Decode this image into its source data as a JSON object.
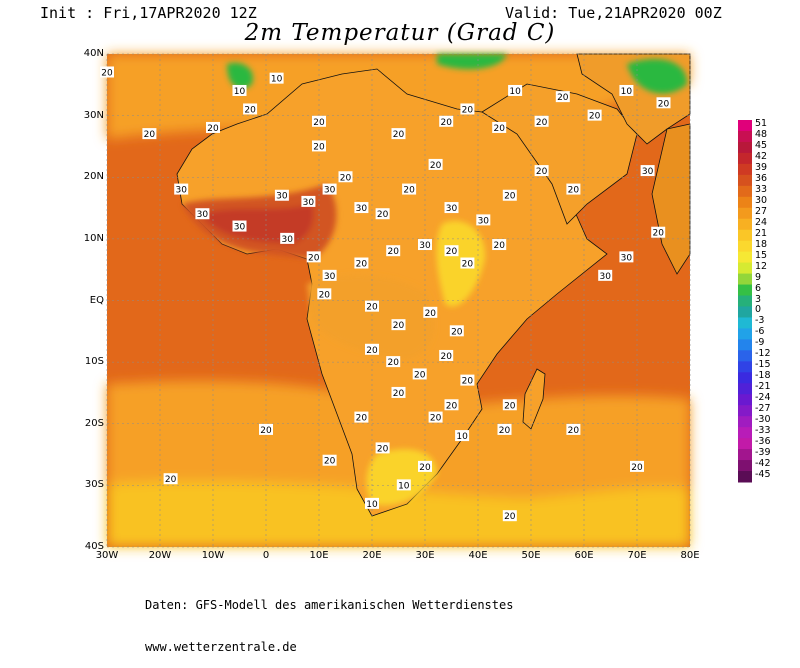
{
  "header": {
    "init": "Init : Fri,17APR2020 12Z",
    "valid": "Valid: Tue,21APR2020 00Z"
  },
  "title": "2m Temperatur (Grad C)",
  "map": {
    "lat_ticks": [
      "40N",
      "30N",
      "20N",
      "10N",
      "EQ",
      "10S",
      "20S",
      "30S",
      "40S"
    ],
    "lon_ticks": [
      "30W",
      "20W",
      "10W",
      "0",
      "10E",
      "20E",
      "30E",
      "40E",
      "50E",
      "60E",
      "70E",
      "80E"
    ],
    "lat_range": [
      -40,
      40
    ],
    "lon_range": [
      -30,
      80
    ],
    "grid": "dashed",
    "colors": {
      "ocean_warm": "#e2681a",
      "ocean_mild": "#f6a028",
      "ocean_cool": "#f9c223",
      "land_warm": "#f7a12a",
      "land_hot": "#d25520",
      "land_very_hot": "#c43b26",
      "mountain_cool": "#fad32c",
      "snow_cold": "#2ab840"
    },
    "labels": [
      {
        "lon": -30,
        "lat": 37,
        "value": "20"
      },
      {
        "lon": -22,
        "lat": 27,
        "value": "20"
      },
      {
        "lon": -10,
        "lat": 28,
        "value": "20"
      },
      {
        "lon": -5,
        "lat": 34,
        "value": "10"
      },
      {
        "lon": 2,
        "lat": 36,
        "value": "10"
      },
      {
        "lon": -3,
        "lat": 31,
        "value": "20"
      },
      {
        "lon": 10,
        "lat": 29,
        "value": "20"
      },
      {
        "lon": 10,
        "lat": 25,
        "value": "20"
      },
      {
        "lon": 25,
        "lat": 27,
        "value": "20"
      },
      {
        "lon": 32,
        "lat": 22,
        "value": "20"
      },
      {
        "lon": 34,
        "lat": 29,
        "value": "20"
      },
      {
        "lon": 38,
        "lat": 31,
        "value": "20"
      },
      {
        "lon": 44,
        "lat": 28,
        "value": "20"
      },
      {
        "lon": 47,
        "lat": 34,
        "value": "10"
      },
      {
        "lon": 52,
        "lat": 29,
        "value": "20"
      },
      {
        "lon": 56,
        "lat": 33,
        "value": "20"
      },
      {
        "lon": 62,
        "lat": 30,
        "value": "20"
      },
      {
        "lon": 68,
        "lat": 34,
        "value": "10"
      },
      {
        "lon": 75,
        "lat": 32,
        "value": "20"
      },
      {
        "lon": -16,
        "lat": 18,
        "value": "30"
      },
      {
        "lon": -12,
        "lat": 14,
        "value": "30"
      },
      {
        "lon": -5,
        "lat": 12,
        "value": "30"
      },
      {
        "lon": 3,
        "lat": 17,
        "value": "30"
      },
      {
        "lon": 8,
        "lat": 16,
        "value": "30"
      },
      {
        "lon": 12,
        "lat": 18,
        "value": "30"
      },
      {
        "lon": 15,
        "lat": 20,
        "value": "20"
      },
      {
        "lon": 18,
        "lat": 15,
        "value": "30"
      },
      {
        "lon": 22,
        "lat": 14,
        "value": "20"
      },
      {
        "lon": 27,
        "lat": 18,
        "value": "20"
      },
      {
        "lon": 35,
        "lat": 15,
        "value": "30"
      },
      {
        "lon": 41,
        "lat": 13,
        "value": "30"
      },
      {
        "lon": 46,
        "lat": 17,
        "value": "20"
      },
      {
        "lon": 52,
        "lat": 21,
        "value": "20"
      },
      {
        "lon": 58,
        "lat": 18,
        "value": "20"
      },
      {
        "lon": 72,
        "lat": 21,
        "value": "30"
      },
      {
        "lon": 74,
        "lat": 11,
        "value": "20"
      },
      {
        "lon": 68,
        "lat": 7,
        "value": "30"
      },
      {
        "lon": 64,
        "lat": 4,
        "value": "30"
      },
      {
        "lon": 4,
        "lat": 10,
        "value": "30"
      },
      {
        "lon": 9,
        "lat": 7,
        "value": "20"
      },
      {
        "lon": 12,
        "lat": 4,
        "value": "30"
      },
      {
        "lon": 18,
        "lat": 6,
        "value": "20"
      },
      {
        "lon": 24,
        "lat": 8,
        "value": "20"
      },
      {
        "lon": 30,
        "lat": 9,
        "value": "30"
      },
      {
        "lon": 35,
        "lat": 8,
        "value": "20"
      },
      {
        "lon": 38,
        "lat": 6,
        "value": "20"
      },
      {
        "lon": 44,
        "lat": 9,
        "value": "20"
      },
      {
        "lon": 11,
        "lat": 1,
        "value": "20"
      },
      {
        "lon": 20,
        "lat": -1,
        "value": "20"
      },
      {
        "lon": 25,
        "lat": -4,
        "value": "20"
      },
      {
        "lon": 31,
        "lat": -2,
        "value": "20"
      },
      {
        "lon": 36,
        "lat": -5,
        "value": "20"
      },
      {
        "lon": 20,
        "lat": -8,
        "value": "20"
      },
      {
        "lon": 24,
        "lat": -10,
        "value": "20"
      },
      {
        "lon": 29,
        "lat": -12,
        "value": "20"
      },
      {
        "lon": 34,
        "lat": -9,
        "value": "20"
      },
      {
        "lon": 38,
        "lat": -13,
        "value": "20"
      },
      {
        "lon": 25,
        "lat": -15,
        "value": "20"
      },
      {
        "lon": 32,
        "lat": -19,
        "value": "20"
      },
      {
        "lon": 35,
        "lat": -17,
        "value": "20"
      },
      {
        "lon": 37,
        "lat": -22,
        "value": "10"
      },
      {
        "lon": 22,
        "lat": -24,
        "value": "20"
      },
      {
        "lon": 18,
        "lat": -19,
        "value": "20"
      },
      {
        "lon": 30,
        "lat": -27,
        "value": "20"
      },
      {
        "lon": 26,
        "lat": -30,
        "value": "10"
      },
      {
        "lon": 20,
        "lat": -33,
        "value": "10"
      },
      {
        "lon": 12,
        "lat": -26,
        "value": "20"
      },
      {
        "lon": 0,
        "lat": -21,
        "value": "20"
      },
      {
        "lon": -18,
        "lat": -29,
        "value": "20"
      },
      {
        "lon": 45,
        "lat": -21,
        "value": "20"
      },
      {
        "lon": 46,
        "lat": -17,
        "value": "20"
      },
      {
        "lon": 58,
        "lat": -21,
        "value": "20"
      },
      {
        "lon": 70,
        "lat": -27,
        "value": "20"
      },
      {
        "lon": 46,
        "lat": -35,
        "value": "20"
      }
    ]
  },
  "colorbar": {
    "levels": [
      "51",
      "48",
      "45",
      "42",
      "39",
      "36",
      "33",
      "30",
      "27",
      "24",
      "21",
      "18",
      "15",
      "12",
      "9",
      "6",
      "3",
      "0",
      "-3",
      "-6",
      "-9",
      "-12",
      "-15",
      "-18",
      "-21",
      "-24",
      "-27",
      "-30",
      "-33",
      "-36",
      "-39",
      "-42",
      "-45"
    ],
    "colors": [
      "#e0007a",
      "#c80f52",
      "#b8183a",
      "#c4262c",
      "#cf3a23",
      "#d6511e",
      "#e26a1a",
      "#ec8317",
      "#f39a1d",
      "#f8b022",
      "#fac627",
      "#fbd82e",
      "#f6e834",
      "#d6ea32",
      "#93d63a",
      "#35c045",
      "#26b07a",
      "#20a6a0",
      "#1fb9d4",
      "#21a2e8",
      "#2384ec",
      "#2a63ea",
      "#3043e6",
      "#3a2ae0",
      "#5021d8",
      "#6a19d0",
      "#841ac8",
      "#a01cc0",
      "#b81cb8",
      "#c21aa8",
      "#a2158e",
      "#7e1070",
      "#5a0c55"
    ]
  },
  "footer": {
    "line1": "Daten: GFS-Modell des amerikanischen Wetterdienstes",
    "line2": "www.wetterzentrale.de"
  }
}
